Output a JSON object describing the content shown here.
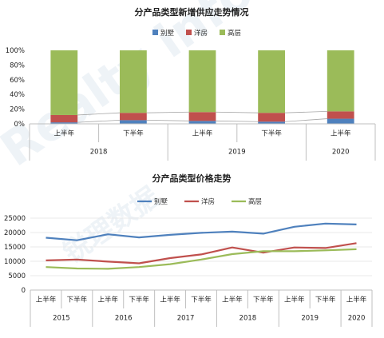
{
  "chart_data": [
    {
      "type": "bar",
      "stacked": true,
      "title": "分产品类型新增供应走势情况",
      "legend": {
        "position": "top",
        "entries": [
          "别墅",
          "洋房",
          "高层"
        ]
      },
      "colors": {
        "别墅": "#4f81bd",
        "洋房": "#c0504d",
        "高层": "#9bbb59"
      },
      "categories": [
        "上半年",
        "下半年",
        "上半年",
        "下半年",
        "上半年"
      ],
      "groups": [
        {
          "label": "2018",
          "span": 2
        },
        {
          "label": "2019",
          "span": 2
        },
        {
          "label": "2020",
          "span": 1
        }
      ],
      "series": [
        {
          "name": "别墅",
          "values": [
            2,
            5,
            4,
            3,
            7
          ]
        },
        {
          "name": "洋房",
          "values": [
            10,
            10,
            12,
            12,
            10
          ]
        },
        {
          "name": "高层",
          "values": [
            88,
            85,
            84,
            85,
            83
          ]
        }
      ],
      "ylim": [
        0,
        100
      ],
      "yticks": [
        "0%",
        "20%",
        "40%",
        "60%",
        "80%",
        "100%"
      ],
      "grid": false
    },
    {
      "type": "line",
      "title": "分产品类型价格走势",
      "legend": {
        "position": "top",
        "entries": [
          "别墅",
          "洋房",
          "高层"
        ]
      },
      "colors": {
        "别墅": "#4f81bd",
        "洋房": "#c0504d",
        "高层": "#9bbb59"
      },
      "categories": [
        "上半年",
        "下半年",
        "上半年",
        "下半年",
        "上半年",
        "下半年",
        "上半年",
        "下半年",
        "上半年",
        "下半年",
        "上半年"
      ],
      "groups": [
        {
          "label": "2015",
          "span": 2
        },
        {
          "label": "2016",
          "span": 2
        },
        {
          "label": "2017",
          "span": 2
        },
        {
          "label": "2018",
          "span": 2
        },
        {
          "label": "2019",
          "span": 2
        },
        {
          "label": "2020",
          "span": 1
        }
      ],
      "series": [
        {
          "name": "别墅",
          "values": [
            18200,
            17300,
            19400,
            18300,
            19200,
            19900,
            20300,
            19600,
            22000,
            23100,
            22800
          ]
        },
        {
          "name": "洋房",
          "values": [
            10300,
            10600,
            9900,
            9300,
            11100,
            12400,
            14800,
            13000,
            14800,
            14600,
            16300
          ]
        },
        {
          "name": "高层",
          "values": [
            8000,
            7500,
            7400,
            8000,
            9000,
            10600,
            12500,
            13500,
            13500,
            13800,
            14200
          ]
        }
      ],
      "ylim": [
        0,
        25000
      ],
      "yticks": [
        "0",
        "5000",
        "10000",
        "15000",
        "20000",
        "25000"
      ],
      "grid": true
    }
  ],
  "watermark": {
    "text": "Realty info",
    "subtext": "锐理数据"
  }
}
